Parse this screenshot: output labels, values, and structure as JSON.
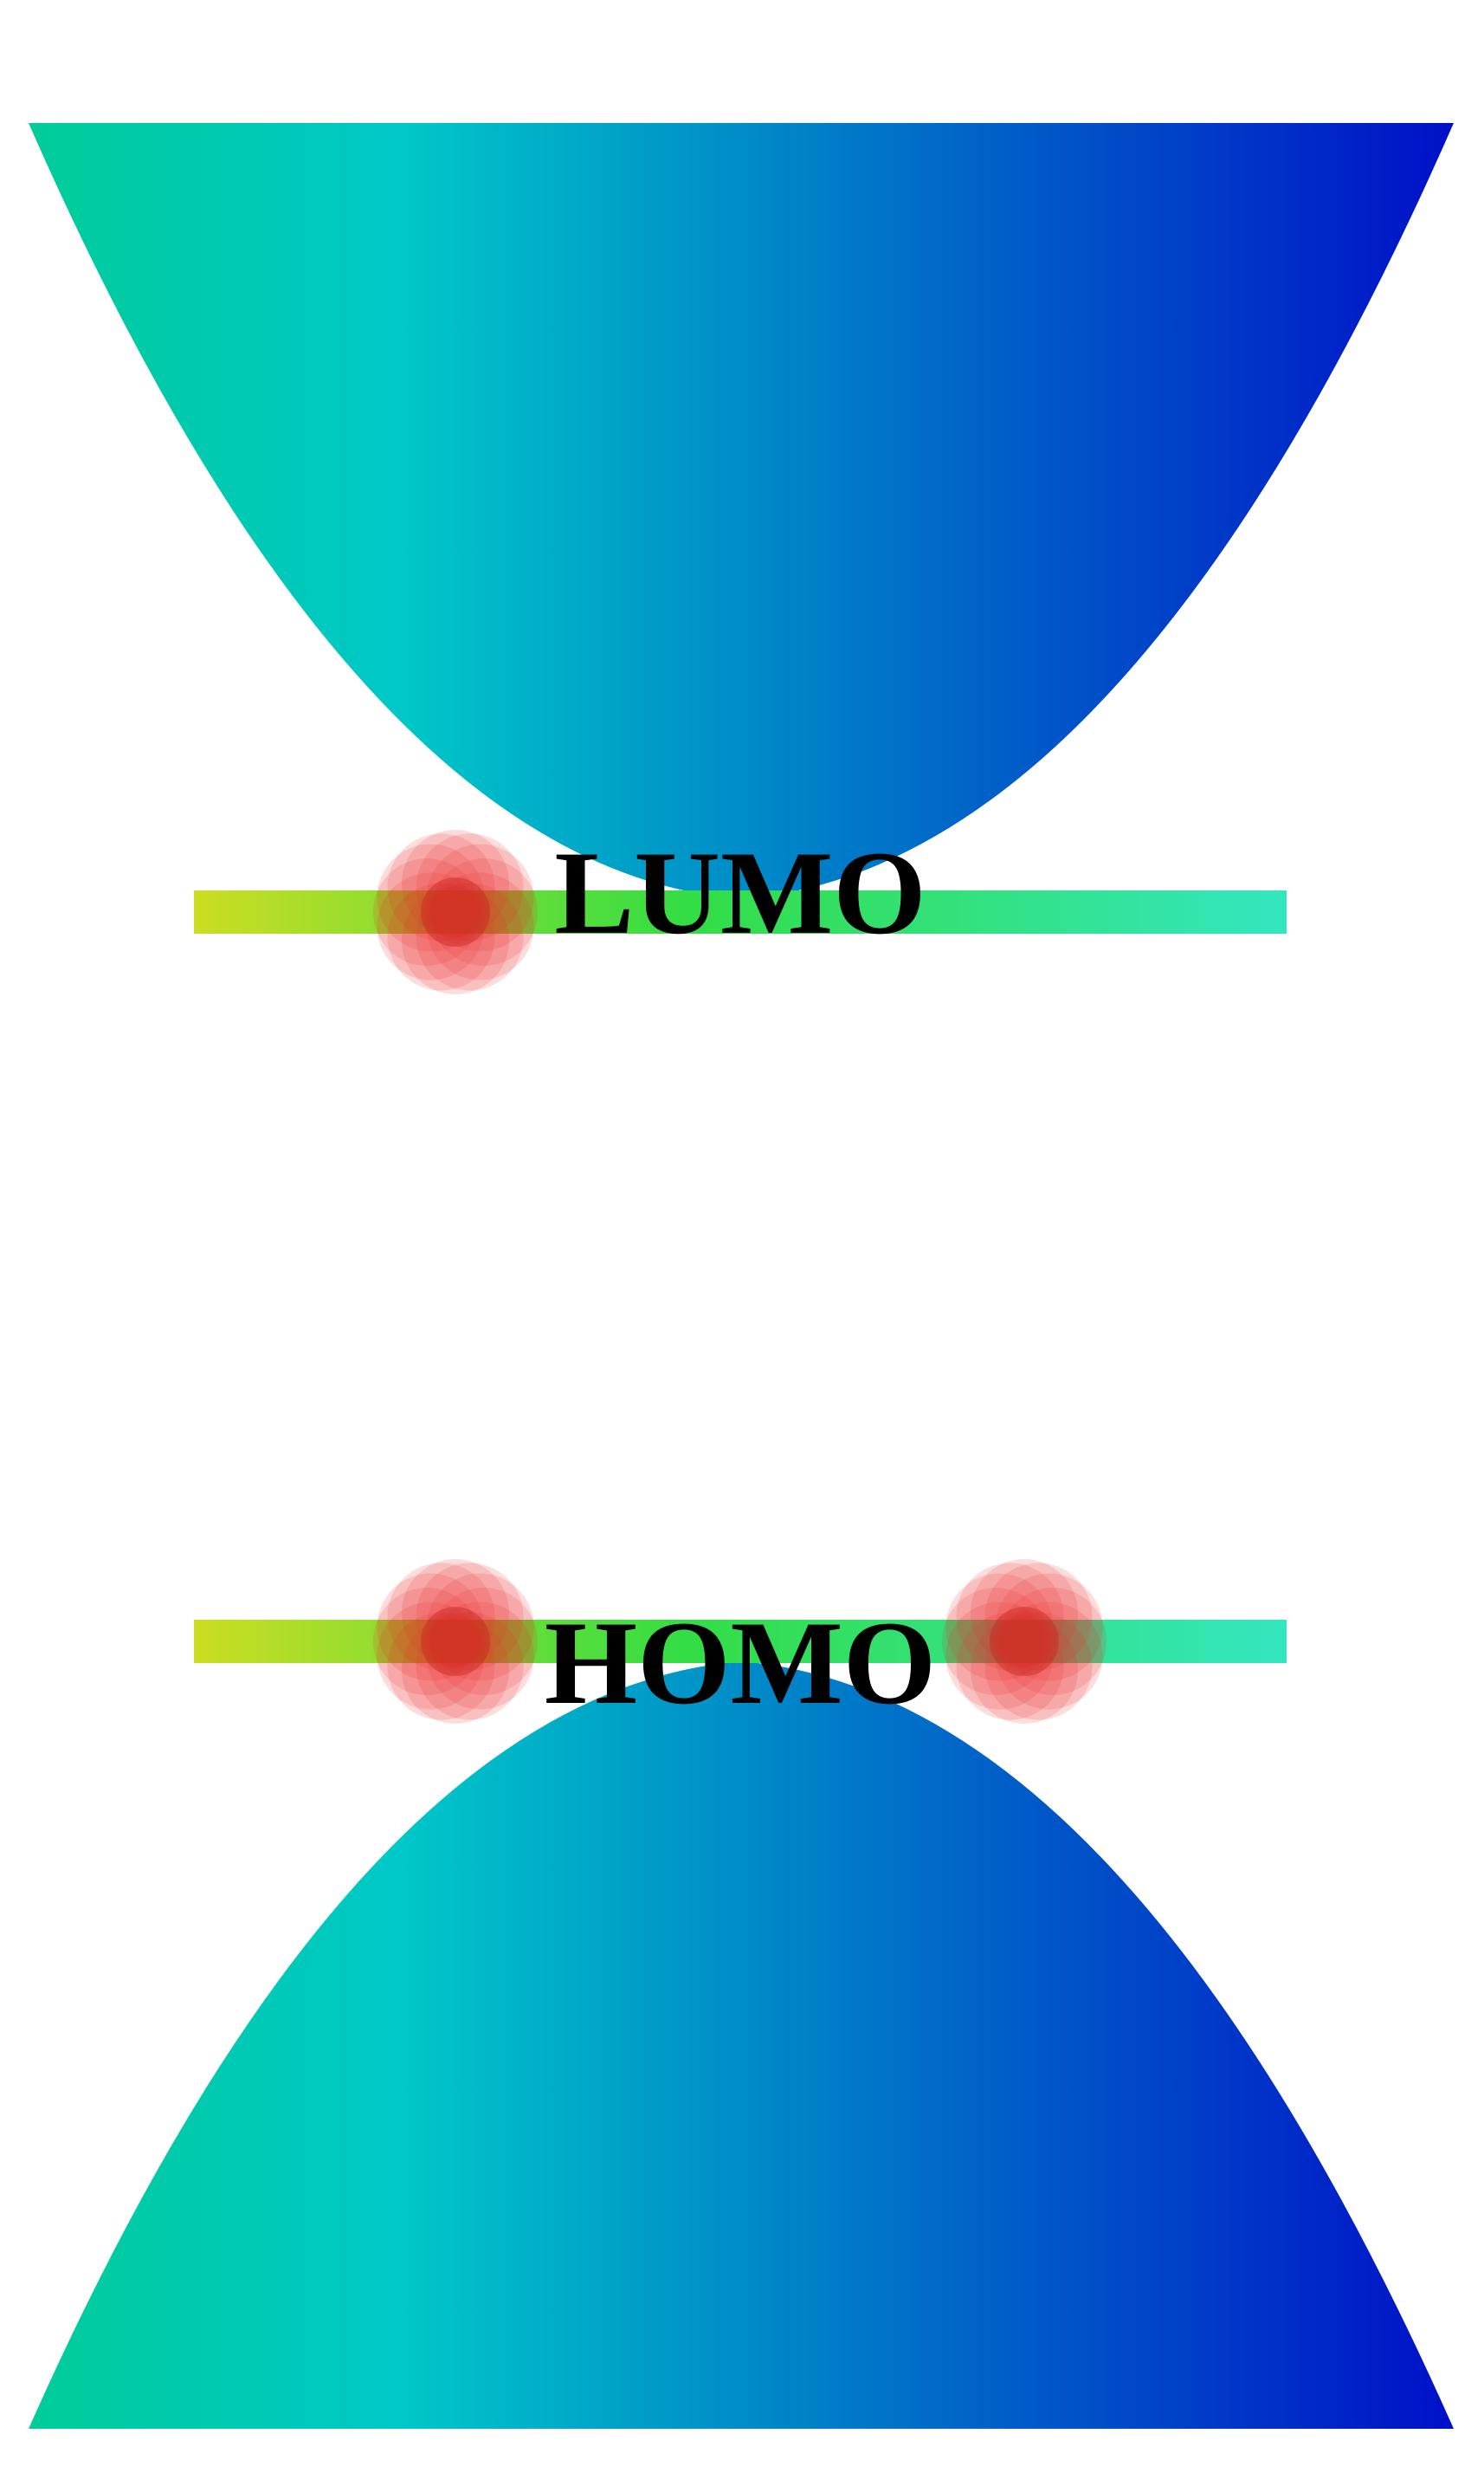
{
  "labels": {
    "lumo": "LUMO",
    "homo": "HOMO"
  },
  "colors": {
    "band_gradient_start": "#00cc99",
    "band_gradient_mid": "#00c8c8",
    "band_gradient_end": "#0010c8",
    "level_gradient_start": "#ccdd22",
    "level_gradient_mid": "#33dd44",
    "level_gradient_end": "#33e6c0",
    "electron_color": "#ee2a2a",
    "electron_core": "#c8281e"
  },
  "electrons": {
    "lumo_count": 1,
    "homo_count": 2
  }
}
